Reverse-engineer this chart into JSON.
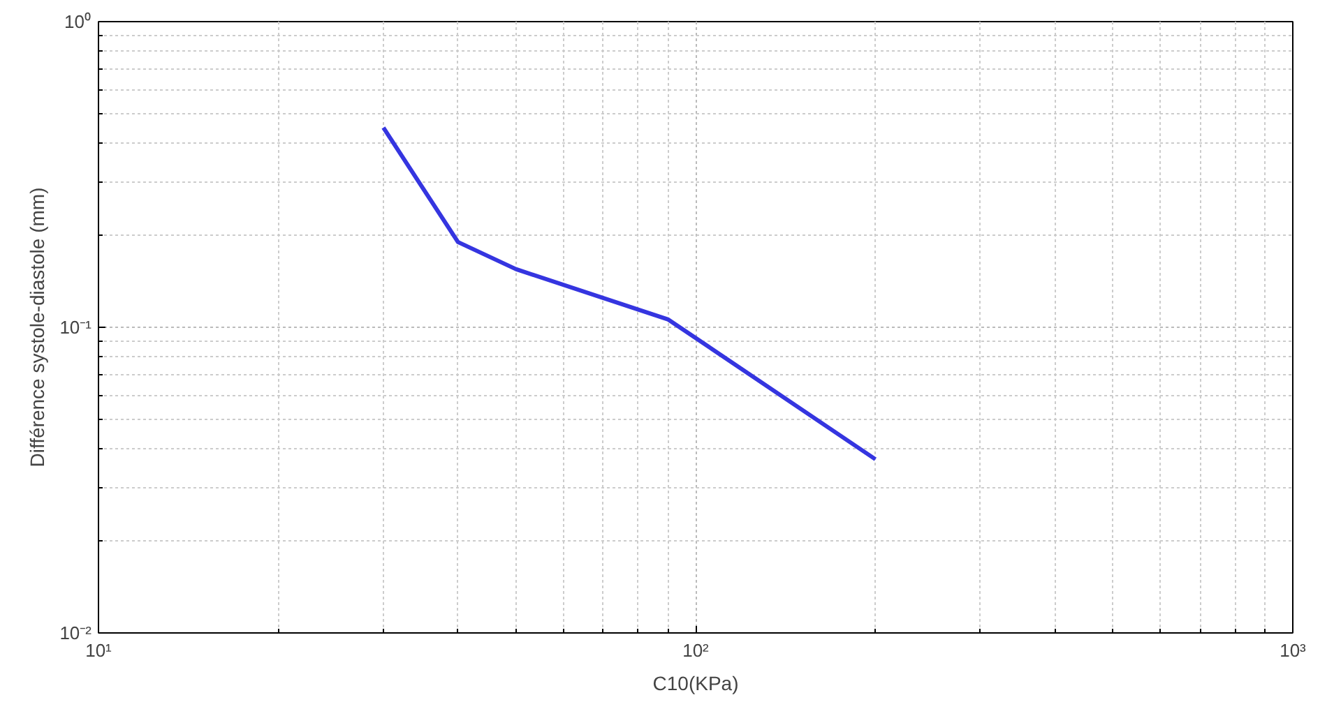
{
  "chart_data": {
    "type": "line",
    "xlabel": "C10(KPa)",
    "ylabel": "Différence systole-diastole (mm)",
    "log": "xy",
    "grid": true,
    "x": [
      30,
      40,
      50,
      90,
      200
    ],
    "series": [
      {
        "color": "#3535e0",
        "values": [
          0.45,
          0.19,
          0.155,
          0.106,
          0.037
        ]
      }
    ],
    "xlim": [
      10,
      1000
    ],
    "ylim": [
      0.01,
      1
    ],
    "xticks": [
      {
        "value": 10,
        "label": "10¹"
      },
      {
        "value": 100,
        "label": "10²"
      },
      {
        "value": 1000,
        "label": "10³"
      }
    ],
    "yticks": [
      {
        "value": 0.01,
        "label": "10⁻²"
      },
      {
        "value": 0.1,
        "label": "10⁻¹"
      },
      {
        "value": 1,
        "label": "10⁰"
      }
    ]
  }
}
